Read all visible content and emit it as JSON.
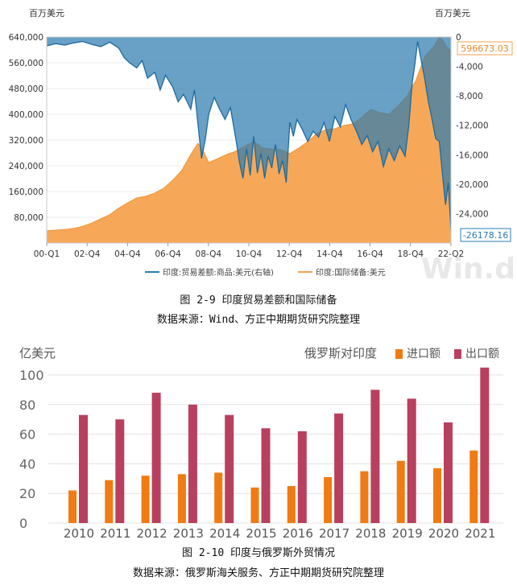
{
  "figure1": {
    "caption": "图 2-9 印度贸易差额和国际储备",
    "source": "数据来源：Wind、方正中期期货研究院整理",
    "watermark": "Win.d",
    "chart_data": {
      "type": "area",
      "left_unit": "百万美元",
      "right_unit": "百万美元",
      "x_ticks": [
        "00-Q1",
        "02-Q4",
        "04-Q4",
        "06-Q4",
        "08-Q4",
        "10-Q4",
        "12-Q4",
        "14-Q4",
        "16-Q4",
        "18-Q4",
        "22-Q2"
      ],
      "left_axis": {
        "ylim": [
          0,
          640000
        ],
        "ticks": [
          "640,000",
          "560,000",
          "480,000",
          "400,000",
          "320,000",
          "240,000",
          "160,000",
          "80,000"
        ]
      },
      "right_axis": {
        "ylim": [
          -28000,
          0
        ],
        "ticks": [
          "0",
          "-4,000",
          "-8,000",
          "-12,000",
          "-16,000",
          "-20,000",
          "-24,000"
        ]
      },
      "series": [
        {
          "name": "印度:贸易差额:商品:美元(右轴)",
          "axis": "right",
          "color": "#2e7bb0",
          "last_label": "-26178.16",
          "points": [
            [
              2000.0,
              -1200
            ],
            [
              2000.5,
              -900
            ],
            [
              2001.0,
              -1100
            ],
            [
              2001.5,
              -800
            ],
            [
              2002.0,
              -600
            ],
            [
              2002.5,
              -1000
            ],
            [
              2003.0,
              -1300
            ],
            [
              2003.5,
              -700
            ],
            [
              2004.0,
              -1500
            ],
            [
              2004.3,
              -2800
            ],
            [
              2004.6,
              -3500
            ],
            [
              2005.0,
              -4200
            ],
            [
              2005.3,
              -3200
            ],
            [
              2005.6,
              -5600
            ],
            [
              2006.0,
              -4800
            ],
            [
              2006.3,
              -7200
            ],
            [
              2006.6,
              -5200
            ],
            [
              2007.0,
              -6800
            ],
            [
              2007.3,
              -8800
            ],
            [
              2007.6,
              -7800
            ],
            [
              2008.0,
              -9800
            ],
            [
              2008.2,
              -7200
            ],
            [
              2008.4,
              -11800
            ],
            [
              2008.6,
              -16500
            ],
            [
              2008.8,
              -14000
            ],
            [
              2009.0,
              -10500
            ],
            [
              2009.3,
              -8200
            ],
            [
              2009.6,
              -9800
            ],
            [
              2009.9,
              -11200
            ],
            [
              2010.2,
              -9600
            ],
            [
              2010.5,
              -13800
            ],
            [
              2010.7,
              -17000
            ],
            [
              2010.9,
              -19200
            ],
            [
              2011.1,
              -15200
            ],
            [
              2011.3,
              -18800
            ],
            [
              2011.5,
              -13500
            ],
            [
              2011.7,
              -18500
            ],
            [
              2011.9,
              -15800
            ],
            [
              2012.1,
              -19200
            ],
            [
              2012.3,
              -16200
            ],
            [
              2012.5,
              -17800
            ],
            [
              2012.7,
              -14600
            ],
            [
              2012.9,
              -18600
            ],
            [
              2013.1,
              -16800
            ],
            [
              2013.3,
              -19800
            ],
            [
              2013.5,
              -11600
            ],
            [
              2013.7,
              -13500
            ],
            [
              2013.9,
              -11200
            ],
            [
              2014.2,
              -12600
            ],
            [
              2014.5,
              -14200
            ],
            [
              2014.8,
              -12800
            ],
            [
              2015.1,
              -13600
            ],
            [
              2015.4,
              -11600
            ],
            [
              2015.7,
              -14200
            ],
            [
              2016.0,
              -10800
            ],
            [
              2016.3,
              -12200
            ],
            [
              2016.6,
              -9200
            ],
            [
              2016.9,
              -11200
            ],
            [
              2017.2,
              -12800
            ],
            [
              2017.5,
              -14600
            ],
            [
              2017.8,
              -13400
            ],
            [
              2018.1,
              -15600
            ],
            [
              2018.4,
              -14200
            ],
            [
              2018.7,
              -17600
            ],
            [
              2019.0,
              -15200
            ],
            [
              2019.3,
              -16800
            ],
            [
              2019.6,
              -14800
            ],
            [
              2019.9,
              -16200
            ],
            [
              2020.1,
              -12200
            ],
            [
              2020.3,
              -6200
            ],
            [
              2020.45,
              -3600
            ],
            [
              2020.6,
              -600
            ],
            [
              2020.8,
              -3200
            ],
            [
              2021.0,
              -5800
            ],
            [
              2021.2,
              -8800
            ],
            [
              2021.4,
              -11200
            ],
            [
              2021.6,
              -13800
            ],
            [
              2021.8,
              -14200
            ],
            [
              2022.0,
              -19200
            ],
            [
              2022.15,
              -22800
            ],
            [
              2022.3,
              -19800
            ],
            [
              2022.45,
              -26178
            ]
          ]
        },
        {
          "name": "印度:国际储备:美元",
          "axis": "left",
          "color": "#f5a14a",
          "last_label": "596673.03",
          "points": [
            [
              2000.0,
              38000
            ],
            [
              2000.5,
              40000
            ],
            [
              2001.0,
              42000
            ],
            [
              2001.5,
              45000
            ],
            [
              2002.0,
              52000
            ],
            [
              2002.5,
              62000
            ],
            [
              2003.0,
              75000
            ],
            [
              2003.5,
              88000
            ],
            [
              2004.0,
              108000
            ],
            [
              2004.5,
              125000
            ],
            [
              2005.0,
              140000
            ],
            [
              2005.5,
              145000
            ],
            [
              2006.0,
              155000
            ],
            [
              2006.5,
              170000
            ],
            [
              2007.0,
              195000
            ],
            [
              2007.5,
              225000
            ],
            [
              2008.0,
              275000
            ],
            [
              2008.4,
              310000
            ],
            [
              2008.7,
              285000
            ],
            [
              2009.0,
              250000
            ],
            [
              2009.5,
              262000
            ],
            [
              2010.0,
              275000
            ],
            [
              2010.5,
              285000
            ],
            [
              2011.0,
              300000
            ],
            [
              2011.5,
              315000
            ],
            [
              2012.0,
              295000
            ],
            [
              2012.5,
              292000
            ],
            [
              2013.0,
              290000
            ],
            [
              2013.5,
              278000
            ],
            [
              2014.0,
              295000
            ],
            [
              2014.5,
              315000
            ],
            [
              2015.0,
              340000
            ],
            [
              2015.5,
              352000
            ],
            [
              2016.0,
              355000
            ],
            [
              2016.5,
              365000
            ],
            [
              2017.0,
              370000
            ],
            [
              2017.5,
              390000
            ],
            [
              2018.0,
              415000
            ],
            [
              2018.5,
              405000
            ],
            [
              2019.0,
              400000
            ],
            [
              2019.5,
              425000
            ],
            [
              2020.0,
              455000
            ],
            [
              2020.5,
              505000
            ],
            [
              2021.0,
              580000
            ],
            [
              2021.5,
              610000
            ],
            [
              2021.8,
              640000
            ],
            [
              2022.0,
              630000
            ],
            [
              2022.2,
              610000
            ],
            [
              2022.45,
              596673
            ]
          ]
        }
      ]
    }
  },
  "figure2": {
    "caption": "图 2-10 印度与俄罗斯外贸情况",
    "source": "数据来源：俄罗斯海关服务、方正中期期货研究院整理",
    "chart_data": {
      "type": "bar",
      "unit": "亿美元",
      "legend_title": "俄罗斯对印度",
      "categories": [
        "2010",
        "2011",
        "2012",
        "2013",
        "2014",
        "2015",
        "2016",
        "2017",
        "2018",
        "2019",
        "2020",
        "2021"
      ],
      "ylim": [
        0,
        100
      ],
      "y_ticks": [
        "100",
        "80",
        "60",
        "40",
        "20",
        "0"
      ],
      "series": [
        {
          "name": "进口额",
          "color": "#f07b12",
          "values": [
            22,
            29,
            32,
            33,
            34,
            24,
            25,
            31,
            35,
            42,
            37,
            49
          ]
        },
        {
          "name": "出口额",
          "color": "#b8405e",
          "values": [
            73,
            70,
            88,
            80,
            73,
            64,
            62,
            74,
            90,
            84,
            68,
            105
          ]
        }
      ]
    }
  }
}
